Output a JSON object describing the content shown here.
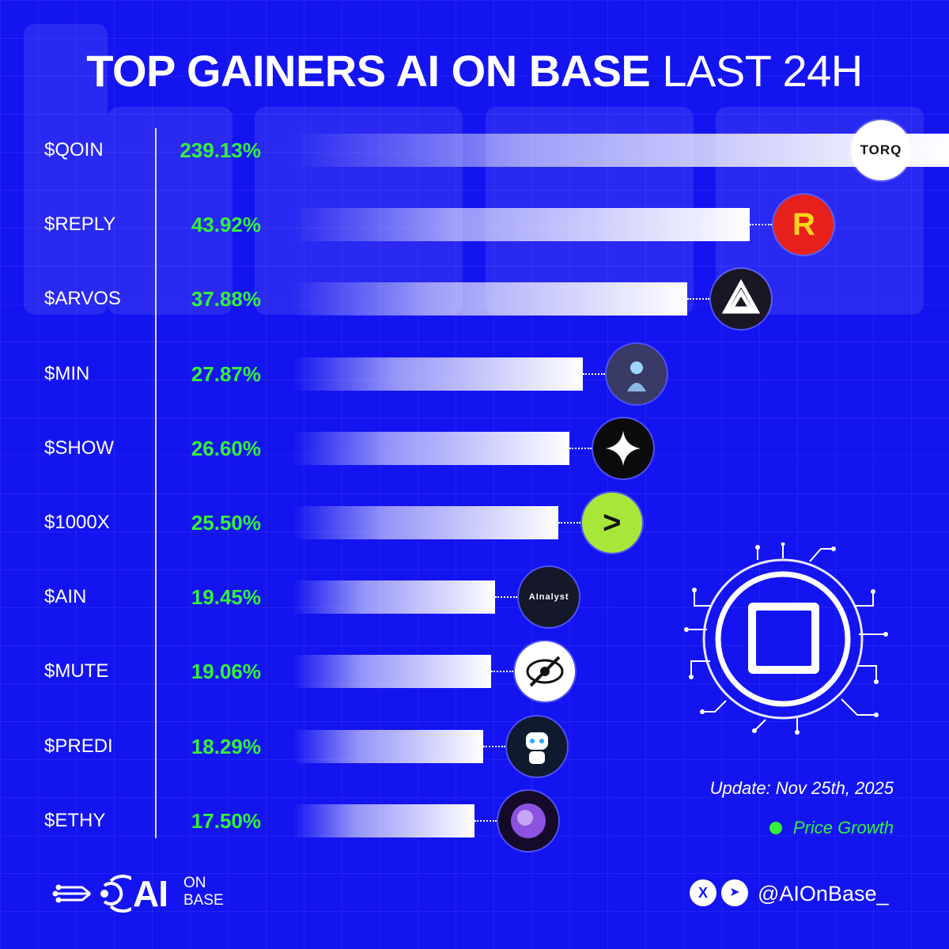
{
  "title": {
    "bold": "TOP GAINERS AI ON BASE",
    "light": "LAST 24H"
  },
  "chart_data": {
    "type": "bar",
    "orientation": "horizontal",
    "categories": [
      "$QOIN",
      "$REPLY",
      "$ARVOS",
      "$MIN",
      "$SHOW",
      "$1000X",
      "$AIN",
      "$MUTE",
      "$PREDI",
      "$ETHY"
    ],
    "series": [
      {
        "values": [
          239.13,
          43.92,
          37.88,
          27.87,
          26.6,
          25.5,
          19.45,
          19.06,
          18.29,
          17.5
        ]
      }
    ],
    "value_labels": [
      "239.13%",
      "43.92%",
      "37.88%",
      "27.87%",
      "26.60%",
      "25.50%",
      "19.45%",
      "19.06%",
      "18.29%",
      "17.50%"
    ],
    "legend": {
      "label": "Price Growth",
      "color": "#35f03a",
      "placement": "bottom-right"
    },
    "grid": false
  },
  "logos": [
    {
      "name": "torq-logo",
      "text": "TORQ",
      "bg": "#ffffff",
      "fg": "#111111"
    },
    {
      "name": "reply-logo",
      "text": "R",
      "bg": "#e8201b",
      "fg": "#ffd51a"
    },
    {
      "name": "arvos-logo",
      "text": "",
      "bg": "#1a1624",
      "fg": "#ffffff"
    },
    {
      "name": "min-logo",
      "text": "",
      "bg": "#3a3a66",
      "fg": "#9fd8ff"
    },
    {
      "name": "show-logo",
      "text": "",
      "bg": "#0b0b0b",
      "fg": "#ffffff"
    },
    {
      "name": "1000x-logo",
      "text": ">",
      "bg": "#a8e63a",
      "fg": "#111111"
    },
    {
      "name": "ainalyst-logo",
      "text": "AInalyst",
      "bg": "#141828",
      "fg": "#ffffff"
    },
    {
      "name": "mute-logo",
      "text": "",
      "bg": "#ffffff",
      "fg": "#111111"
    },
    {
      "name": "predi-logo",
      "text": "",
      "bg": "#0f1a2e",
      "fg": "#ffffff"
    },
    {
      "name": "ethy-logo",
      "text": "",
      "bg": "#160a2a",
      "fg": "#a060ff"
    }
  ],
  "footer": {
    "update": "Update: Nov 25th, 2025",
    "brand_main": "AI",
    "brand_sub1": "ON",
    "brand_sub2": "BASE",
    "handle": "@AIOnBase_",
    "x_icon_glyph": "X",
    "telegram_icon_glyph": "➤"
  },
  "colors": {
    "background": "#1414f0",
    "value_text": "#35f03a",
    "bar": "#ffffff"
  }
}
